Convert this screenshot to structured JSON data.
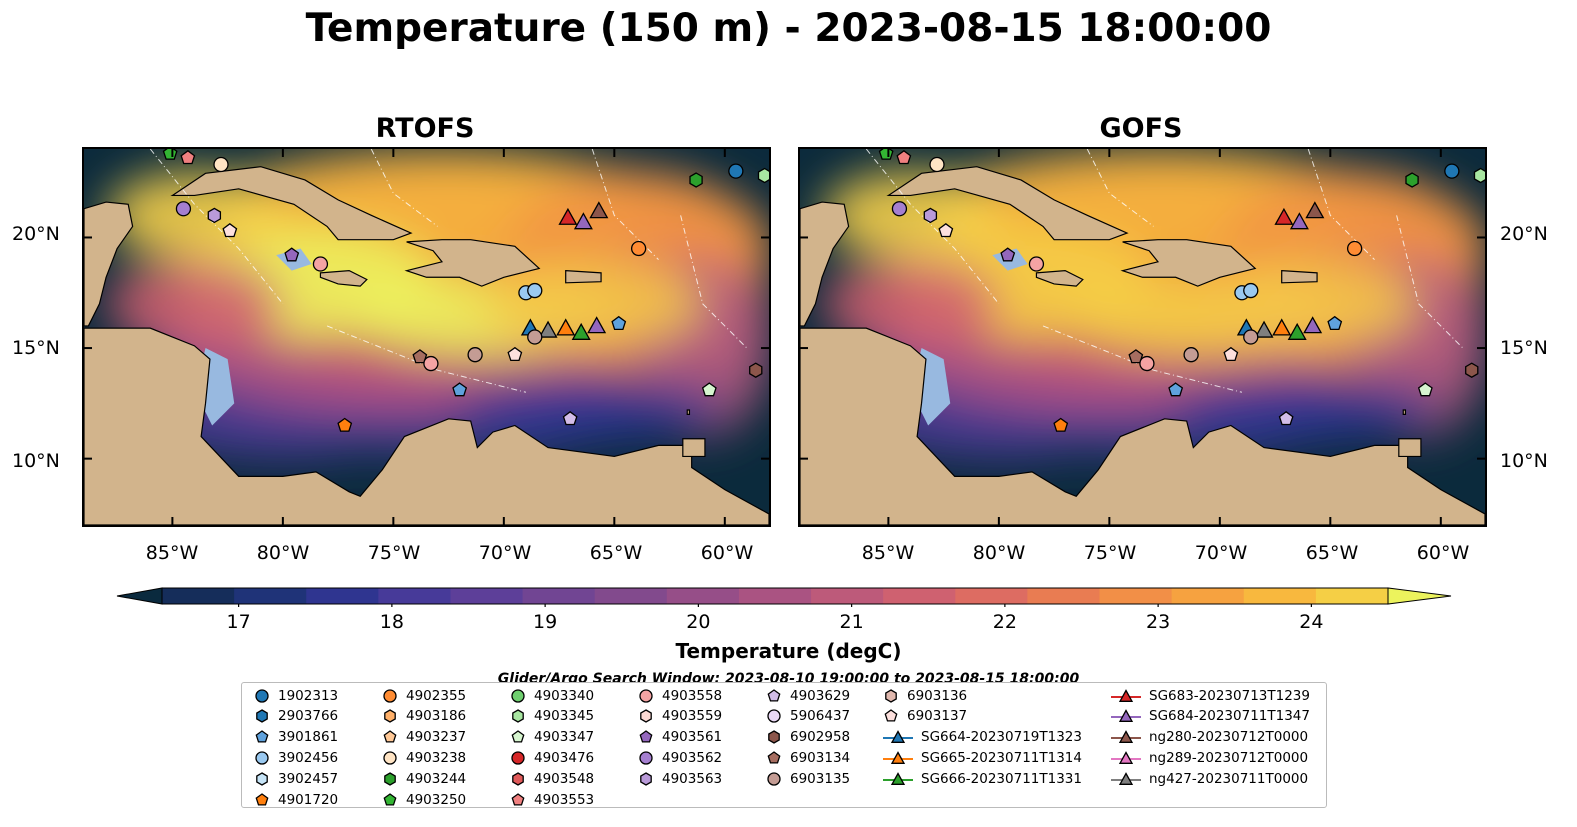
{
  "title": "Temperature (150 m) - 2023-08-15 18:00:00",
  "panels": [
    {
      "title": "RTOFS",
      "id": "rtofs"
    },
    {
      "title": "GOFS",
      "id": "gofs"
    }
  ],
  "axes": {
    "lat_ticks": [
      "20°N",
      "15°N",
      "10°N"
    ],
    "lon_ticks": [
      "85°W",
      "80°W",
      "75°W",
      "70°W",
      "65°W",
      "60°W"
    ]
  },
  "colorbar": {
    "label": "Temperature (degC)",
    "ticks": [
      "17",
      "18",
      "19",
      "20",
      "21",
      "22",
      "23",
      "24"
    ],
    "min": 16.5,
    "max": 24.5,
    "step": 0.5,
    "colors": [
      "#0a2a3e",
      "#152d5a",
      "#1f3378",
      "#2f3590",
      "#473a99",
      "#5d3f99",
      "#714593",
      "#824a8d",
      "#964e88",
      "#aa5382",
      "#bd5a7a",
      "#cf6170",
      "#dd6c62",
      "#e97c52",
      "#f28f47",
      "#f6a240",
      "#f8b83e",
      "#f5cf45",
      "#ecf35d"
    ],
    "extend": "both"
  },
  "search_window": "Glider/Argo Search Window: 2023-08-10 19:00:00 to 2023-08-15 18:00:00",
  "legend": {
    "columns": [
      [
        {
          "label": "1902313",
          "marker": "circle",
          "color": "#1f77b4"
        },
        {
          "label": "2903766",
          "marker": "hexagon",
          "color": "#1f77b4"
        },
        {
          "label": "3901861",
          "marker": "pentagon",
          "color": "#5fa2dd"
        },
        {
          "label": "3902456",
          "marker": "circle",
          "color": "#9ac9f0"
        },
        {
          "label": "3902457",
          "marker": "hexagon",
          "color": "#c6e4f7"
        },
        {
          "label": "4901720",
          "marker": "pentagon",
          "color": "#ff7f0e"
        }
      ],
      [
        {
          "label": "4902355",
          "marker": "circle",
          "color": "#ff8c33"
        },
        {
          "label": "4903186",
          "marker": "hexagon",
          "color": "#ffb069"
        },
        {
          "label": "4903237",
          "marker": "pentagon",
          "color": "#ffc896"
        },
        {
          "label": "4903238",
          "marker": "circle",
          "color": "#ffe4c4"
        },
        {
          "label": "4903244",
          "marker": "hexagon",
          "color": "#2ca02c"
        },
        {
          "label": "4903250",
          "marker": "pentagon",
          "color": "#33b533"
        }
      ],
      [
        {
          "label": "4903340",
          "marker": "circle",
          "color": "#6fcf6f"
        },
        {
          "label": "4903345",
          "marker": "hexagon",
          "color": "#a8e6a1"
        },
        {
          "label": "4903347",
          "marker": "pentagon",
          "color": "#d6f5cf"
        },
        {
          "label": "4903476",
          "marker": "circle",
          "color": "#d62728"
        },
        {
          "label": "4903548",
          "marker": "hexagon",
          "color": "#e05a5a"
        },
        {
          "label": "4903553",
          "marker": "pentagon",
          "color": "#f08080"
        }
      ],
      [
        {
          "label": "4903558",
          "marker": "circle",
          "color": "#f4a3a3"
        },
        {
          "label": "4903559",
          "marker": "hexagon",
          "color": "#fcd9d3"
        },
        {
          "label": "4903561",
          "marker": "pentagon",
          "color": "#9467bd"
        },
        {
          "label": "4903562",
          "marker": "circle",
          "color": "#a57fd0"
        },
        {
          "label": "4903563",
          "marker": "hexagon",
          "color": "#b99ad9"
        }
      ],
      [
        {
          "label": "4903629",
          "marker": "pentagon",
          "color": "#d3bde8"
        },
        {
          "label": "5906437",
          "marker": "circle",
          "color": "#ead9f5"
        },
        {
          "label": "6902958",
          "marker": "hexagon",
          "color": "#8c564b"
        },
        {
          "label": "6903134",
          "marker": "pentagon",
          "color": "#a66d60"
        },
        {
          "label": "6903135",
          "marker": "circle",
          "color": "#c49c94"
        }
      ],
      [
        {
          "label": "6903136",
          "marker": "hexagon",
          "color": "#e0b8ae"
        },
        {
          "label": "6903137",
          "marker": "pentagon",
          "color": "#fde0dd"
        },
        {
          "label": "SG664-20230719T1323",
          "marker": "glider",
          "color": "#1f77b4"
        },
        {
          "label": "SG665-20230711T1314",
          "marker": "glider",
          "color": "#ff7f0e"
        },
        {
          "label": "SG666-20230711T1331",
          "marker": "glider",
          "color": "#2ca02c"
        }
      ],
      [
        {
          "label": "SG683-20230713T1239",
          "marker": "glider",
          "color": "#d62728"
        },
        {
          "label": "SG684-20230711T1347",
          "marker": "glider",
          "color": "#9467bd"
        },
        {
          "label": "ng280-20230712T0000",
          "marker": "glider",
          "color": "#8c564b"
        },
        {
          "label": "ng289-20230712T0000",
          "marker": "glider",
          "color": "#e377c2"
        },
        {
          "label": "ng427-20230711T0000",
          "marker": "glider",
          "color": "#7f7f7f"
        }
      ]
    ]
  },
  "map_data": {
    "extent_lon": [
      -89,
      -58
    ],
    "extent_lat": [
      7,
      24
    ],
    "observations": [
      {
        "label": "1902313",
        "marker": "circle",
        "color": "#1f77b4",
        "lon": -59.5,
        "lat": 23.0
      },
      {
        "label": "4903345",
        "marker": "hexagon",
        "color": "#a8e6a1",
        "lon": -58.2,
        "lat": 22.8
      },
      {
        "label": "4903244",
        "marker": "hexagon",
        "color": "#2ca02c",
        "lon": -61.3,
        "lat": 22.6
      },
      {
        "label": "4903250",
        "marker": "pentagon",
        "color": "#33b533",
        "lon": -85.1,
        "lat": 23.8
      },
      {
        "label": "4903553",
        "marker": "pentagon",
        "color": "#f08080",
        "lon": -84.3,
        "lat": 23.6
      },
      {
        "label": "4903238",
        "marker": "circle",
        "color": "#ffe4c4",
        "lon": -82.8,
        "lat": 23.3
      },
      {
        "label": "4903562",
        "marker": "circle",
        "color": "#a57fd0",
        "lon": -84.5,
        "lat": 21.3
      },
      {
        "label": "4903563",
        "marker": "hexagon",
        "color": "#b99ad9",
        "lon": -83.1,
        "lat": 21.0
      },
      {
        "label": "6903137",
        "marker": "pentagon",
        "color": "#fde0dd",
        "lon": -82.4,
        "lat": 20.3
      },
      {
        "label": "4903561",
        "marker": "pentagon",
        "color": "#9467bd",
        "lon": -79.6,
        "lat": 19.2
      },
      {
        "label": "4903558",
        "marker": "circle",
        "color": "#f4a3a3",
        "lon": -78.3,
        "lat": 18.8
      },
      {
        "label": "SG683-20230713T1239",
        "marker": "glider",
        "color": "#d62728",
        "lon": -67.1,
        "lat": 20.9
      },
      {
        "label": "SG684-20230711T1347",
        "marker": "glider",
        "color": "#9467bd",
        "lon": -66.4,
        "lat": 20.7
      },
      {
        "label": "ng280-20230712T0000",
        "marker": "glider",
        "color": "#8c564b",
        "lon": -65.7,
        "lat": 21.2
      },
      {
        "label": "4902355",
        "marker": "circle",
        "color": "#ff8c33",
        "lon": -63.9,
        "lat": 19.5
      },
      {
        "label": "3902456",
        "marker": "circle",
        "color": "#9ac9f0",
        "lon": -69.0,
        "lat": 17.5
      },
      {
        "label": "3902456",
        "marker": "circle",
        "color": "#9ac9f0",
        "lon": -68.6,
        "lat": 17.6
      },
      {
        "label": "SG664-20230719T1323",
        "marker": "glider",
        "color": "#1f77b4",
        "lon": -68.8,
        "lat": 15.9
      },
      {
        "label": "ng427-20230711T0000",
        "marker": "glider",
        "color": "#7f7f7f",
        "lon": -68.0,
        "lat": 15.8
      },
      {
        "label": "SG665-20230711T1314",
        "marker": "glider",
        "color": "#ff7f0e",
        "lon": -67.2,
        "lat": 15.9
      },
      {
        "label": "SG666-20230711T1331",
        "marker": "glider",
        "color": "#2ca02c",
        "lon": -66.5,
        "lat": 15.7
      },
      {
        "label": "SG684-20230711T1347",
        "marker": "glider",
        "color": "#9467bd",
        "lon": -65.8,
        "lat": 16.0
      },
      {
        "label": "3901861",
        "marker": "pentagon",
        "color": "#5fa2dd",
        "lon": -64.8,
        "lat": 16.1
      },
      {
        "label": "6903135",
        "marker": "circle",
        "color": "#c49c94",
        "lon": -68.6,
        "lat": 15.5
      },
      {
        "label": "6903134",
        "marker": "pentagon",
        "color": "#a66d60",
        "lon": -73.8,
        "lat": 14.6
      },
      {
        "label": "4903558",
        "marker": "circle",
        "color": "#f4a3a3",
        "lon": -73.3,
        "lat": 14.3
      },
      {
        "label": "6903135",
        "marker": "circle",
        "color": "#c49c94",
        "lon": -71.3,
        "lat": 14.7
      },
      {
        "label": "6903137",
        "marker": "pentagon",
        "color": "#fde0dd",
        "lon": -69.5,
        "lat": 14.7
      },
      {
        "label": "3901861",
        "marker": "pentagon",
        "color": "#5fa2dd",
        "lon": -72.0,
        "lat": 13.1
      },
      {
        "label": "4903347",
        "marker": "pentagon",
        "color": "#d6f5cf",
        "lon": -60.7,
        "lat": 13.1
      },
      {
        "label": "6902958",
        "marker": "hexagon",
        "color": "#8c564b",
        "lon": -58.6,
        "lat": 14.0
      },
      {
        "label": "4901720",
        "marker": "pentagon",
        "color": "#ff7f0e",
        "lon": -77.2,
        "lat": 11.5
      },
      {
        "label": "4903629",
        "marker": "pentagon",
        "color": "#d3bde8",
        "lon": -67.0,
        "lat": 11.8
      }
    ]
  }
}
